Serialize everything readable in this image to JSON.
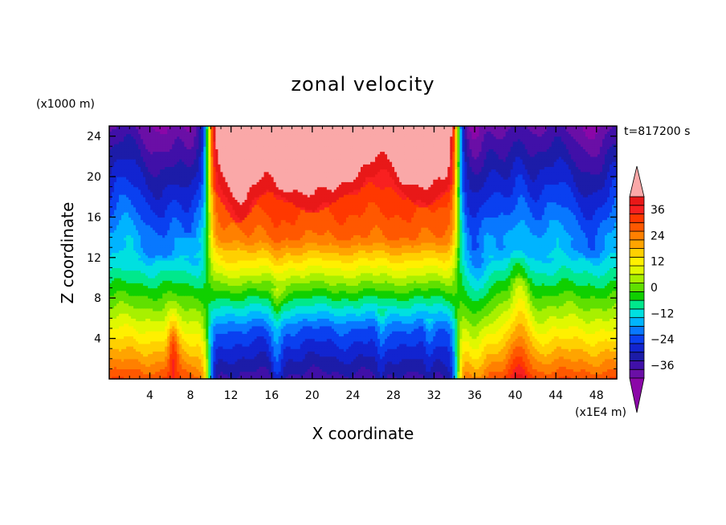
{
  "chart_data": {
    "type": "heatmap",
    "title": "zonal velocity",
    "time_label": "t=817200 s",
    "xlabel": "X coordinate",
    "ylabel": "Z coordinate",
    "x_unit": "(x1E4 m)",
    "y_unit": "(x1000 m)",
    "xlim": [
      0,
      50
    ],
    "ylim": [
      0,
      25
    ],
    "x_ticks": [
      4,
      8,
      12,
      16,
      20,
      24,
      28,
      32,
      36,
      40,
      44,
      48
    ],
    "y_ticks": [
      4,
      8,
      12,
      16,
      20,
      24
    ],
    "x_tick_labels": [
      "4",
      "8",
      "12",
      "16",
      "20",
      "24",
      "28",
      "32",
      "36",
      "40",
      "44",
      "48"
    ],
    "y_tick_labels": [
      "4",
      "8",
      "12",
      "16",
      "20",
      "24"
    ],
    "colorbar": {
      "min": -42,
      "max": 42,
      "step": 4,
      "tick_values": [
        36,
        24,
        12,
        0,
        -12,
        -24,
        -36
      ],
      "tick_labels": [
        "36",
        "24",
        "12",
        "0",
        "−12",
        "−24",
        "−36"
      ],
      "extend": "both"
    },
    "field_features": {
      "westerly_jet_core": {
        "x_range": [
          10,
          34
        ],
        "z_range": [
          16,
          25
        ],
        "peak": 42
      },
      "easterly_regions": [
        {
          "x_range": [
            0,
            9.5
          ],
          "z_range": [
            10,
            25
          ]
        },
        {
          "x_range": [
            35,
            50
          ],
          "z_range": [
            10,
            25
          ]
        }
      ],
      "sharp_shear_lines_x": [
        9.8,
        34.3
      ]
    }
  }
}
